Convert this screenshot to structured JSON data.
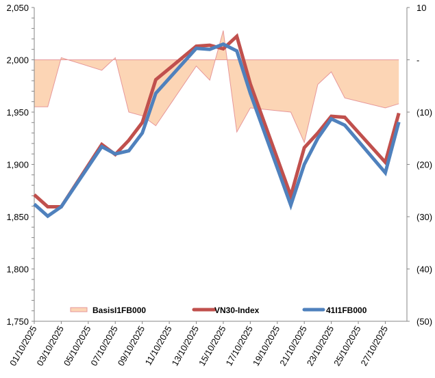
{
  "chart_data": {
    "type": "line",
    "title": "",
    "xlabel": "",
    "ylabel": "",
    "y2label": "",
    "x_range_days": [
      1,
      28.6
    ],
    "ylim": [
      1750,
      2050
    ],
    "y_ticks": [
      1750,
      1800,
      1850,
      1900,
      1950,
      2000,
      2050
    ],
    "y_tick_labels": [
      "1,750",
      "1,800",
      "1,850",
      "1,900",
      "1,950",
      "2,000",
      "2,050"
    ],
    "y_minor_step": 10,
    "y2lim": [
      -50,
      10
    ],
    "y2_ticks": [
      -50,
      -40,
      -30,
      -20,
      -10,
      0,
      10
    ],
    "y2_tick_labels": [
      "(50)",
      "(40)",
      "(30)",
      "(20)",
      "(10)",
      "-",
      "10"
    ],
    "x_tick_days": [
      1,
      3,
      5,
      7,
      9,
      11,
      13,
      15,
      17,
      19,
      21,
      23,
      25,
      27
    ],
    "x_tick_labels": [
      "01/10/2025",
      "03/10/2025",
      "05/10/2025",
      "07/10/2025",
      "09/10/2025",
      "11/10/2025",
      "13/10/2025",
      "15/10/2025",
      "17/10/2025",
      "19/10/2025",
      "21/10/2025",
      "23/10/2025",
      "25/10/2025",
      "27/10/2025"
    ],
    "x_days": [
      1,
      2,
      3,
      6,
      7,
      8,
      9,
      10,
      13,
      14,
      15,
      16,
      17,
      20,
      21,
      22,
      23,
      24,
      27,
      28
    ],
    "grid": false,
    "legend_position": "bottom-inside",
    "series": [
      {
        "name": "BasisI1FB000",
        "type": "area",
        "axis": "right",
        "color": "#FCD5B5",
        "edge_color": "#E6979A",
        "values": [
          -9,
          -9,
          0.4,
          -2,
          0.4,
          -10,
          -10.7,
          -12.6,
          -1.2,
          -3.9,
          5.6,
          -13.8,
          -9.2,
          -10,
          -15.8,
          -4.7,
          -2.3,
          -7.3,
          -9.2,
          -8.4
        ]
      },
      {
        "name": "VN30-Index",
        "type": "line",
        "axis": "left",
        "color": "#C0504D",
        "values": [
          1871,
          1859.5,
          1859.5,
          1919,
          1909.5,
          1923,
          1940,
          1981,
          2013,
          2014,
          2010.5,
          2022.5,
          1977,
          1870,
          1916,
          1930,
          1946,
          1945,
          1902,
          1949
        ]
      },
      {
        "name": "41I1FB000",
        "type": "line",
        "axis": "left",
        "color": "#4F81BD",
        "values": [
          1862,
          1850.5,
          1859.5,
          1917,
          1910,
          1913,
          1930,
          1968,
          2011,
          2010,
          2015,
          2008.5,
          1968,
          1861,
          1900,
          1925,
          1943.5,
          1937.5,
          1892,
          1940.5
        ]
      }
    ]
  }
}
